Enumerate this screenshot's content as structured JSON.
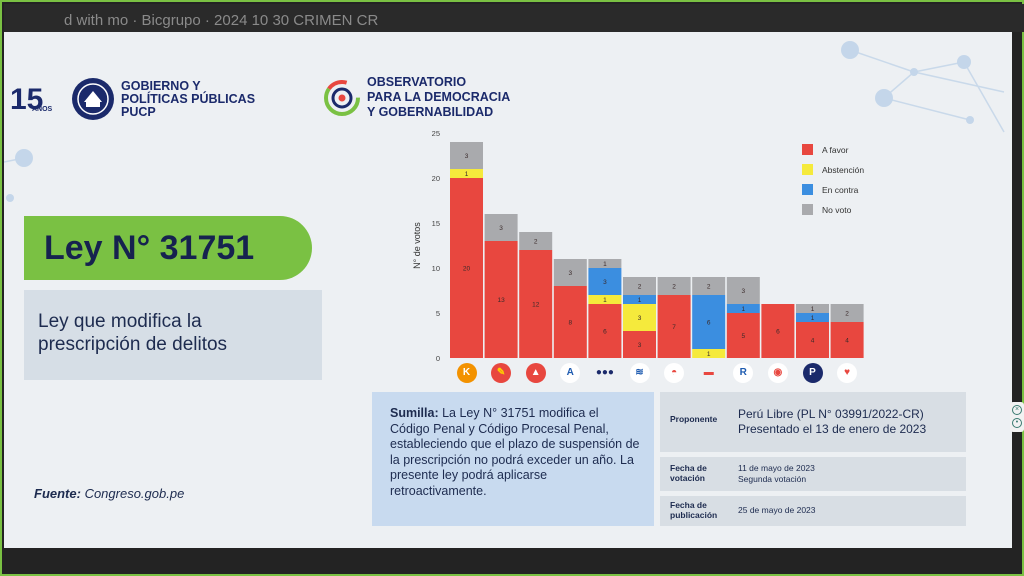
{
  "window": {
    "tab_text": "d with mo  ·  Bicgrupo  ·  2024 10 30 CRIMEN CR",
    "tab_close": "×"
  },
  "logos": {
    "pucp_15": "15",
    "pucp_15_small": "AÑOS",
    "pucp_line1": "GOBIERNO Y",
    "pucp_line2": "POLÍTICAS PÚBLICAS",
    "pucp_line3": "PUCP",
    "obs_line1": "OBSERVATORIO",
    "obs_line2": "PARA LA DEMOCRACIA",
    "obs_line3": "Y GOBERNABILIDAD"
  },
  "law": {
    "title": "Ley N° 31751",
    "subtitle_line1": "Ley que modifica la",
    "subtitle_line2": "prescripción de delitos"
  },
  "source": {
    "label": "Fuente:",
    "value": " Congreso.gob.pe"
  },
  "sumilla": {
    "label": "Sumilla:",
    "text": " La Ley N° 31751 modifica el Código Penal y Código Procesal Penal, estableciendo que el plazo de suspensión de la prescripción no podrá exceder un año. La presente ley podrá aplicarse retroactivamente."
  },
  "info": {
    "proponente_label": "Proponente",
    "proponente_line1": "Perú Libre (PL N° 03991/2022-CR)",
    "proponente_line2": "Presentado el 13 de enero de 2023",
    "votacion_label_1": "Fecha de",
    "votacion_label_2": "votación",
    "votacion_line1": "11 de mayo de 2023",
    "votacion_line2": "Segunda votación",
    "publicacion_label_1": "Fecha de",
    "publicacion_label_2": "publicación",
    "publicacion_value": "25 de mayo de 2023"
  },
  "colors": {
    "a_favor": "#e8473f",
    "abstencion": "#f5ea3c",
    "en_contra": "#3b8ee0",
    "no_voto": "#a9aaad",
    "accent_green": "#7ac143",
    "navy": "#1b2a6b"
  },
  "party_icons": [
    {
      "name": "fuerza-popular-icon",
      "glyph": "K",
      "bg": "#f39200",
      "fg": "#ffffff"
    },
    {
      "name": "peru-libre-icon",
      "glyph": "✎",
      "bg": "#e8473f",
      "fg": "#ffd000"
    },
    {
      "name": "accion-popular-icon",
      "glyph": "▲",
      "bg": "#e8473f",
      "fg": "#ffffff"
    },
    {
      "name": "alianza-progreso-icon",
      "glyph": "A",
      "bg": "#ffffff",
      "fg": "#1e5bb0"
    },
    {
      "name": "bloque-magisterial-icon",
      "glyph": "●●●",
      "bg": "#edf0f3",
      "fg": "#1b2a6b"
    },
    {
      "name": "avanza-pais-icon",
      "glyph": "≋",
      "bg": "#ffffff",
      "fg": "#1e5bb0"
    },
    {
      "name": "peru-bicentenario-icon",
      "glyph": "◓",
      "bg": "#ffffff",
      "fg": "#e8473f"
    },
    {
      "name": "peru-democratico-icon",
      "glyph": "▬",
      "bg": "#edf0f3",
      "fg": "#e8473f"
    },
    {
      "name": "renovacion-popular-icon",
      "glyph": "R",
      "bg": "#ffffff",
      "fg": "#1e5bb0"
    },
    {
      "name": "somos-peru-icon",
      "glyph": "◉",
      "bg": "#ffffff",
      "fg": "#e8473f"
    },
    {
      "name": "podemos-icon",
      "glyph": "P",
      "bg": "#1b2a6b",
      "fg": "#ffffff"
    },
    {
      "name": "juntos-peru-icon",
      "glyph": "♥",
      "bg": "#ffffff",
      "fg": "#e8473f"
    }
  ],
  "chart_data": {
    "type": "bar",
    "stacked": true,
    "ylabel": "N° de votos",
    "ylim": [
      0,
      25
    ],
    "yticks": [
      0,
      5,
      10,
      15,
      20,
      25
    ],
    "categories": [
      "Fuerza Popular",
      "Perú Libre",
      "Acción Popular",
      "Alianza para el Progreso",
      "Bloque Magisterial",
      "Avanza País",
      "Perú Bicentenario",
      "Perú Democrático",
      "Renovación Popular",
      "Somos Perú",
      "Podemos Perú",
      "Juntos por el Perú"
    ],
    "series": [
      {
        "name": "A favor",
        "color": "#e8473f",
        "values": [
          20,
          13,
          12,
          8,
          6,
          3,
          7,
          0,
          5,
          6,
          4,
          4
        ]
      },
      {
        "name": "Abstención",
        "color": "#f5ea3c",
        "values": [
          1,
          0,
          0,
          0,
          1,
          3,
          0,
          1,
          0,
          0,
          0,
          0
        ]
      },
      {
        "name": "En contra",
        "color": "#3b8ee0",
        "values": [
          0,
          0,
          0,
          0,
          3,
          1,
          0,
          6,
          1,
          0,
          1,
          0
        ]
      },
      {
        "name": "No votó",
        "color": "#a9aaad",
        "values": [
          3,
          3,
          2,
          3,
          1,
          2,
          2,
          2,
          3,
          0,
          1,
          2
        ]
      }
    ],
    "legend": [
      "A favor",
      "Abstención",
      "En contra",
      "No votó"
    ],
    "legend_labels": [
      "A favor",
      "Abstención",
      "En contra",
      "No voto"
    ],
    "legend_position": "top-right",
    "grid": false
  }
}
